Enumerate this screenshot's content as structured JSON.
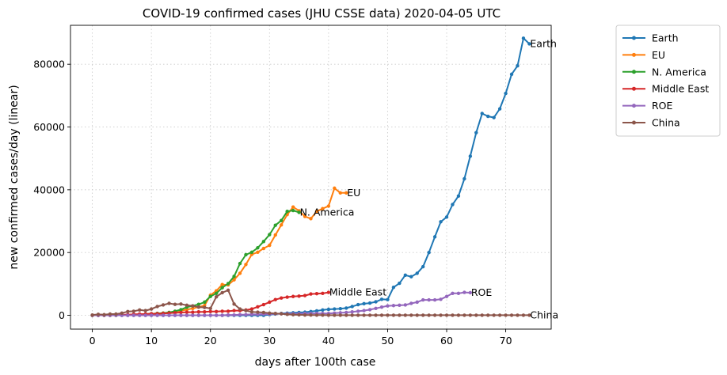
{
  "chart_data": {
    "type": "line",
    "title": "COVID-19 confirmed cases (JHU CSSE data) 2020-04-05 UTC",
    "xlabel": "days after 100th case",
    "ylabel": "new confirmed cases/day (linear)",
    "xlim": [
      -3.7,
      77.7
    ],
    "ylim": [
      -4400,
      92400
    ],
    "xticks": [
      0,
      10,
      20,
      30,
      40,
      50,
      60,
      70
    ],
    "yticks": [
      0,
      20000,
      40000,
      60000,
      80000
    ],
    "grid": true,
    "legend_position": "outside-right",
    "series": [
      {
        "name": "Earth",
        "color": "#1f77b4",
        "annotation": "Earth",
        "x": [
          0,
          1,
          2,
          3,
          4,
          5,
          6,
          7,
          8,
          9,
          10,
          11,
          12,
          13,
          14,
          15,
          16,
          17,
          18,
          19,
          20,
          21,
          22,
          23,
          24,
          25,
          26,
          27,
          28,
          29,
          30,
          31,
          32,
          33,
          34,
          35,
          36,
          37,
          38,
          39,
          40,
          41,
          42,
          43,
          44,
          45,
          46,
          47,
          48,
          49,
          50,
          51,
          52,
          53,
          54,
          55,
          56,
          57,
          58,
          59,
          60,
          61,
          62,
          63,
          64,
          65,
          66,
          67,
          68,
          69,
          70,
          71,
          72,
          73,
          74
        ],
        "y": [
          0,
          0,
          0,
          0,
          0,
          0,
          0,
          0,
          0,
          0,
          0,
          0,
          0,
          0,
          0,
          0,
          0,
          0,
          0,
          0,
          0,
          0,
          0,
          0,
          0,
          0,
          0,
          0,
          0,
          0,
          200,
          400,
          600,
          700,
          800,
          900,
          1000,
          1200,
          1400,
          1700,
          1900,
          2000,
          2100,
          2300,
          2800,
          3400,
          3700,
          3900,
          4300,
          5100,
          5000,
          8900,
          10200,
          12800,
          12300,
          13400,
          15500,
          20000,
          25000,
          29800,
          31300,
          35300,
          38000,
          43500,
          50700,
          58200,
          64300,
          63400,
          63000,
          65800,
          70700,
          76800,
          79500,
          88300,
          86500
        ]
      },
      {
        "name": "EU",
        "color": "#ff7f0e",
        "annotation": "EU",
        "x": [
          0,
          1,
          2,
          3,
          4,
          5,
          6,
          7,
          8,
          9,
          10,
          11,
          12,
          13,
          14,
          15,
          16,
          17,
          18,
          19,
          20,
          21,
          22,
          23,
          24,
          25,
          26,
          27,
          28,
          29,
          30,
          31,
          32,
          33,
          34,
          35,
          36,
          37,
          38,
          39,
          40,
          41,
          42,
          43
        ],
        "y": [
          0,
          0,
          0,
          0,
          0,
          100,
          100,
          200,
          300,
          400,
          500,
          600,
          700,
          900,
          1200,
          1500,
          1800,
          2200,
          2600,
          3100,
          6400,
          7800,
          9800,
          9700,
          11300,
          13400,
          16200,
          19400,
          20100,
          21300,
          22300,
          25600,
          28800,
          32100,
          34500,
          33300,
          31500,
          30800,
          33100,
          34000,
          34800,
          40500,
          39000,
          39000
        ]
      },
      {
        "name": "N. America",
        "color": "#2ca02c",
        "annotation": "N. America",
        "x": [
          0,
          1,
          2,
          3,
          4,
          5,
          6,
          7,
          8,
          9,
          10,
          11,
          12,
          13,
          14,
          15,
          16,
          17,
          18,
          19,
          20,
          21,
          22,
          23,
          24,
          25,
          26,
          27,
          28,
          29,
          30,
          31,
          32,
          33,
          34,
          35
        ],
        "y": [
          0,
          0,
          0,
          0,
          0,
          100,
          100,
          200,
          300,
          400,
          500,
          600,
          700,
          900,
          1300,
          1800,
          2600,
          3000,
          3500,
          4200,
          6000,
          7000,
          8800,
          10100,
          12400,
          16500,
          19300,
          20100,
          21500,
          23500,
          25700,
          28700,
          30200,
          33100,
          33400,
          32800
        ]
      },
      {
        "name": "Middle East",
        "color": "#d62728",
        "annotation": "Middle East",
        "x": [
          0,
          1,
          2,
          3,
          4,
          5,
          6,
          7,
          8,
          9,
          10,
          11,
          12,
          13,
          14,
          15,
          16,
          17,
          18,
          19,
          20,
          21,
          22,
          23,
          24,
          25,
          26,
          27,
          28,
          29,
          30,
          31,
          32,
          33,
          34,
          35,
          36,
          37,
          38,
          39,
          40
        ],
        "y": [
          0,
          0,
          0,
          0,
          100,
          200,
          200,
          300,
          400,
          400,
          500,
          500,
          600,
          700,
          800,
          900,
          1000,
          1000,
          1100,
          1100,
          1200,
          1200,
          1300,
          1300,
          1500,
          1500,
          1700,
          2000,
          2700,
          3400,
          4200,
          5000,
          5500,
          5800,
          6000,
          6100,
          6300,
          6800,
          6900,
          7000,
          7300
        ]
      },
      {
        "name": "ROE",
        "color": "#9467bd",
        "annotation": "ROE",
        "x": [
          0,
          1,
          2,
          3,
          4,
          5,
          6,
          7,
          8,
          9,
          10,
          11,
          12,
          13,
          14,
          15,
          16,
          17,
          18,
          19,
          20,
          21,
          22,
          23,
          24,
          25,
          26,
          27,
          28,
          29,
          30,
          31,
          32,
          33,
          34,
          35,
          36,
          37,
          38,
          39,
          40,
          41,
          42,
          43,
          44,
          45,
          46,
          47,
          48,
          49,
          50,
          51,
          52,
          53,
          54,
          55,
          56,
          57,
          58,
          59,
          60,
          61,
          62,
          63,
          64
        ],
        "y": [
          0,
          0,
          0,
          0,
          0,
          0,
          0,
          0,
          0,
          0,
          0,
          0,
          0,
          0,
          0,
          0,
          0,
          0,
          0,
          0,
          0,
          0,
          0,
          100,
          100,
          200,
          200,
          300,
          300,
          400,
          400,
          500,
          500,
          500,
          500,
          500,
          600,
          600,
          600,
          600,
          600,
          700,
          800,
          900,
          1100,
          1300,
          1500,
          1800,
          2200,
          2600,
          3000,
          3100,
          3200,
          3300,
          3800,
          4200,
          4900,
          4900,
          4900,
          5100,
          6000,
          7000,
          7000,
          7300,
          7200
        ]
      },
      {
        "name": "China",
        "color": "#8c564b",
        "annotation": "China",
        "x": [
          0,
          1,
          2,
          3,
          4,
          5,
          6,
          7,
          8,
          9,
          10,
          11,
          12,
          13,
          14,
          15,
          16,
          17,
          18,
          19,
          20,
          21,
          22,
          23,
          24,
          25,
          26,
          27,
          28,
          29,
          30,
          31,
          32,
          33,
          34,
          35,
          36,
          37,
          38,
          39,
          40,
          41,
          42,
          43,
          44,
          45,
          46,
          47,
          48,
          49,
          50,
          51,
          52,
          53,
          54,
          55,
          56,
          57,
          58,
          59,
          60,
          61,
          62,
          63,
          64,
          65,
          66,
          67,
          68,
          69,
          70,
          71,
          72,
          73,
          74
        ],
        "y": [
          100,
          300,
          200,
          400,
          400,
          700,
          1200,
          1300,
          1700,
          1500,
          2000,
          2800,
          3300,
          3800,
          3500,
          3600,
          3200,
          3000,
          2600,
          2500,
          2200,
          5900,
          7200,
          8000,
          3600,
          2000,
          1500,
          1100,
          1000,
          900,
          700,
          600,
          500,
          300,
          200,
          150,
          100,
          80,
          60,
          50,
          40,
          30,
          30,
          30,
          30,
          30,
          30,
          30,
          30,
          30,
          30,
          30,
          30,
          30,
          30,
          30,
          30,
          30,
          30,
          30,
          30,
          30,
          30,
          30,
          30,
          30,
          30,
          30,
          30,
          30,
          30,
          30,
          30,
          30,
          30
        ]
      }
    ]
  }
}
